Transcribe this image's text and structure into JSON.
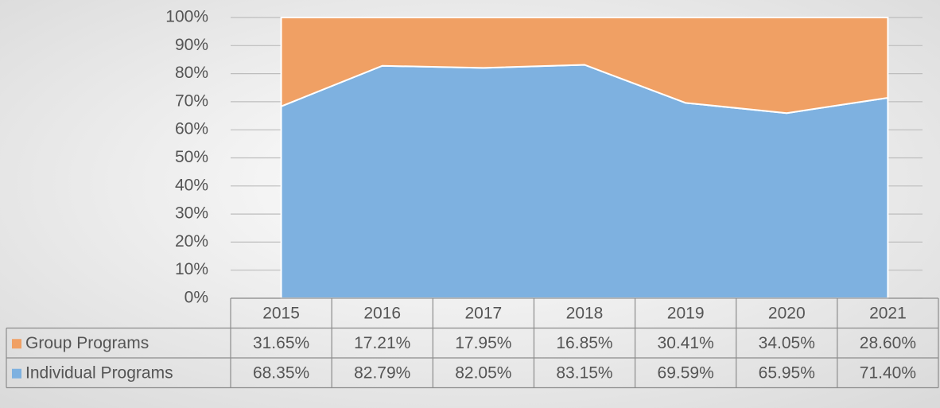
{
  "chart_data": {
    "type": "stacked_area",
    "categories": [
      "2015",
      "2016",
      "2017",
      "2018",
      "2019",
      "2020",
      "2021"
    ],
    "series": [
      {
        "name": "Group Programs",
        "color": "#f0a064",
        "values": [
          31.65,
          17.21,
          17.95,
          16.85,
          30.41,
          34.05,
          28.6
        ],
        "value_labels": [
          "31.65%",
          "17.21%",
          "17.95%",
          "16.85%",
          "30.41%",
          "34.05%",
          "28.60%"
        ]
      },
      {
        "name": "Individual Programs",
        "color": "#7eb1e0",
        "values": [
          68.35,
          82.79,
          82.05,
          83.15,
          69.59,
          65.95,
          71.4
        ],
        "value_labels": [
          "68.35%",
          "82.79%",
          "82.05%",
          "83.15%",
          "69.59%",
          "65.95%",
          "71.40%"
        ]
      }
    ],
    "ylim": [
      0,
      100
    ],
    "yticks": [
      {
        "value": 0,
        "label": "0%"
      },
      {
        "value": 10,
        "label": "10%"
      },
      {
        "value": 20,
        "label": "20%"
      },
      {
        "value": 30,
        "label": "30%"
      },
      {
        "value": 40,
        "label": "40%"
      },
      {
        "value": 50,
        "label": "50%"
      },
      {
        "value": 60,
        "label": "60%"
      },
      {
        "value": 70,
        "label": "70%"
      },
      {
        "value": 80,
        "label": "80%"
      },
      {
        "value": 90,
        "label": "90%"
      },
      {
        "value": 100,
        "label": "100%"
      }
    ],
    "grid": true,
    "data_table": true
  }
}
